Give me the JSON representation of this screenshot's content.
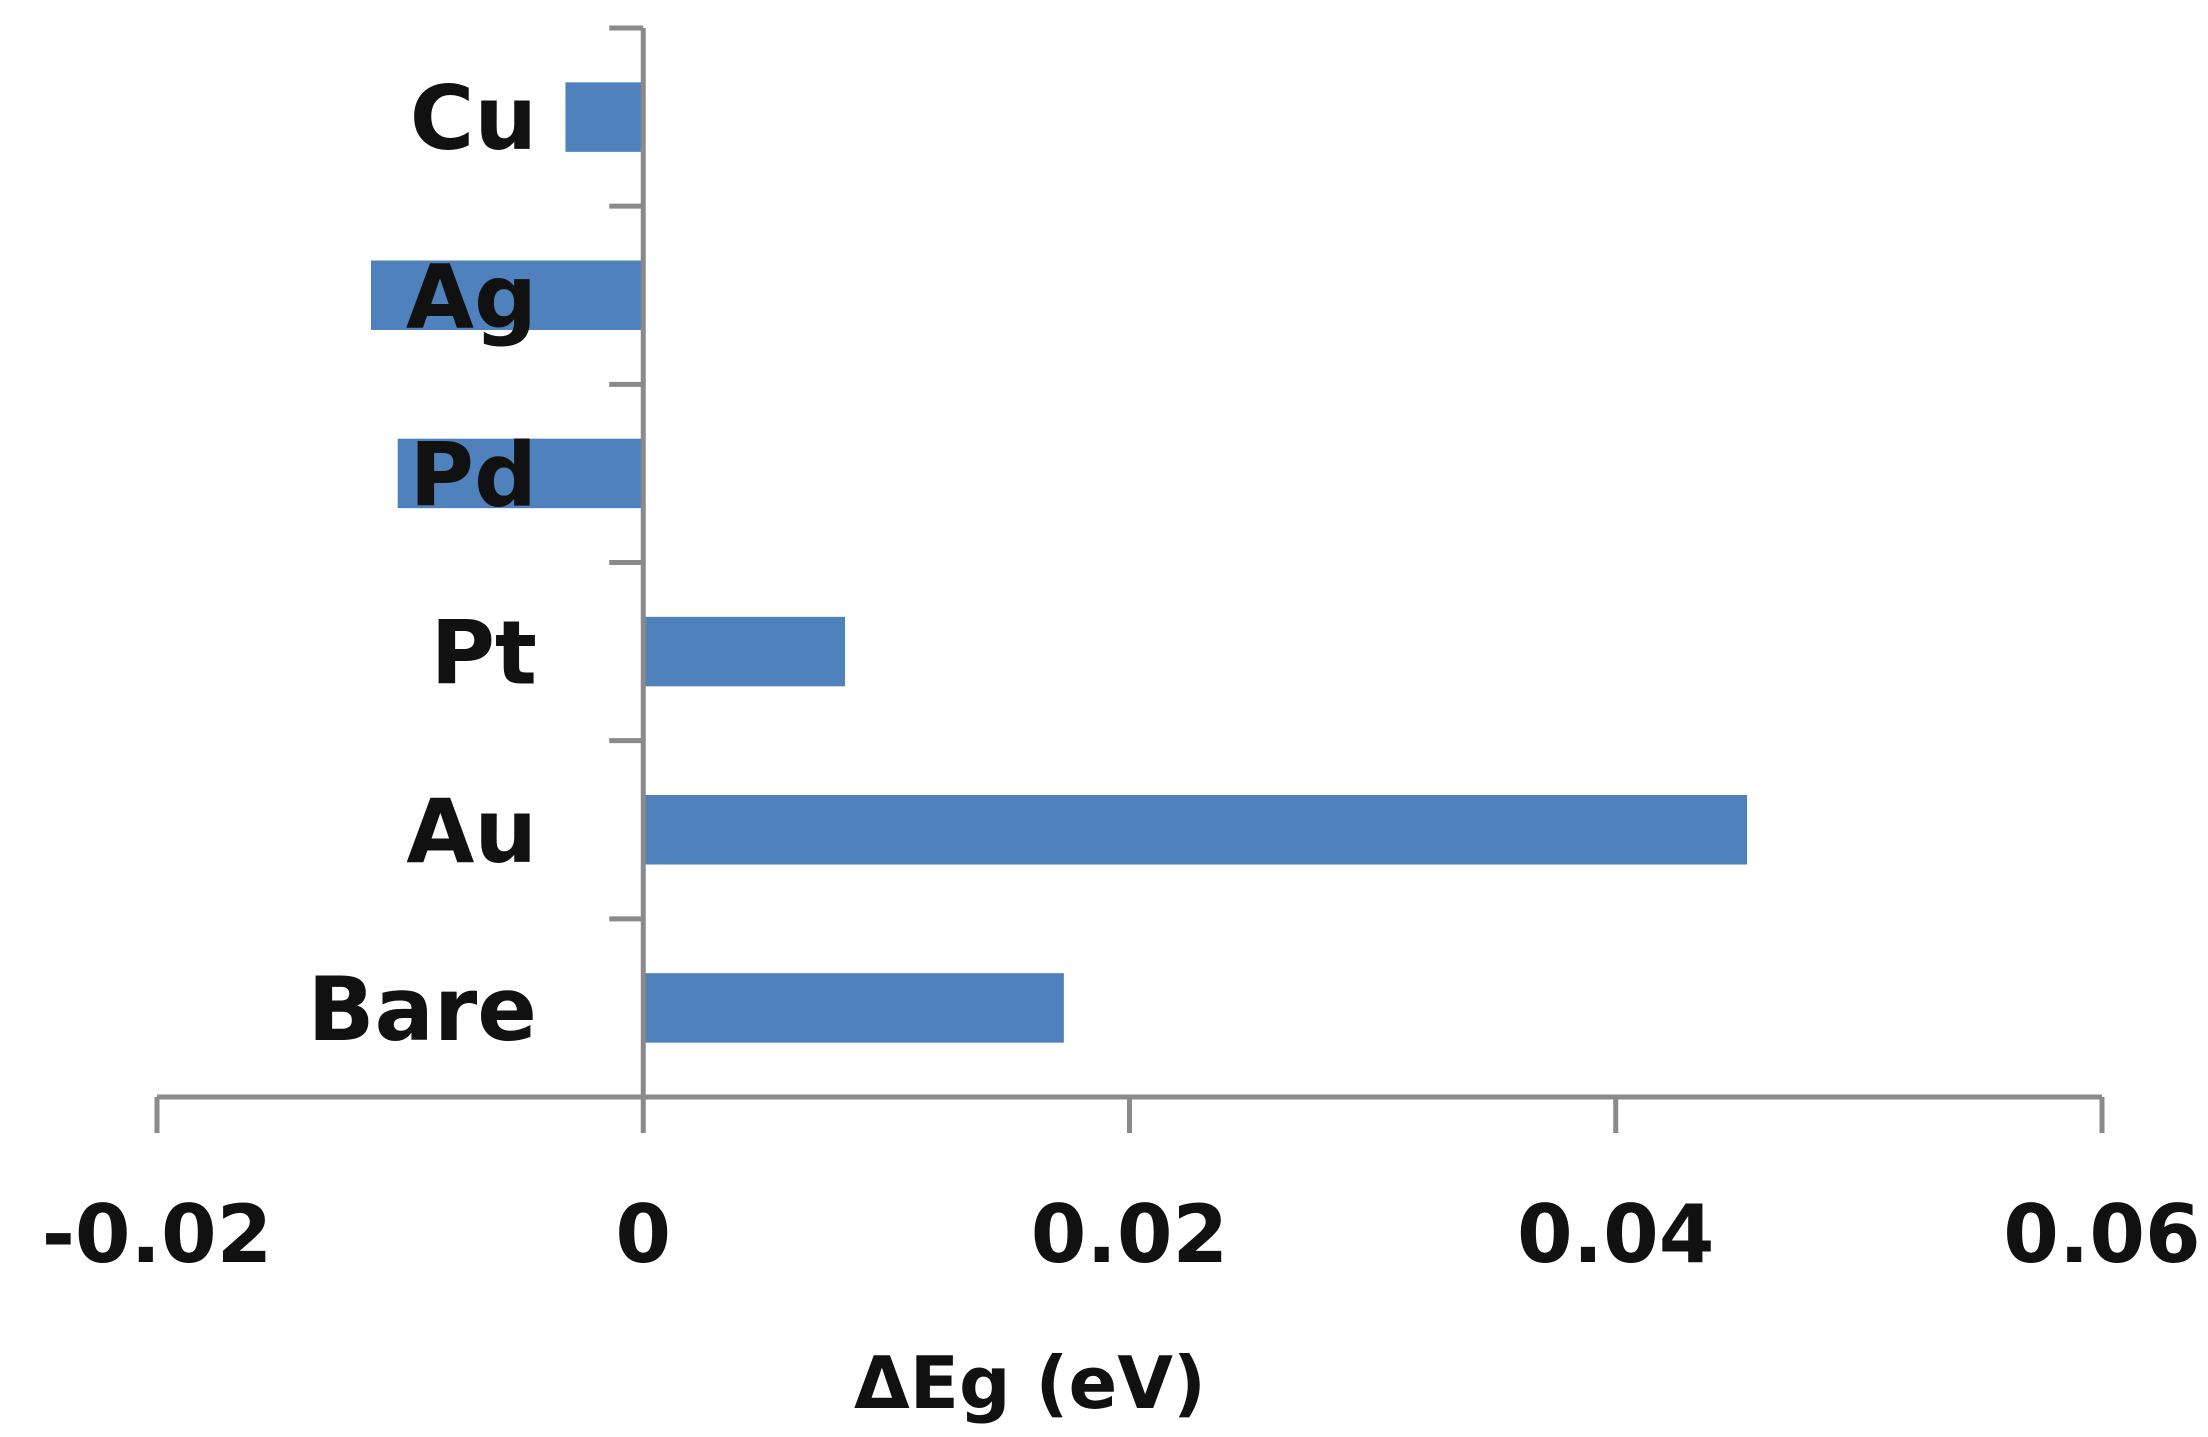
{
  "chart_data": {
    "type": "bar",
    "orientation": "horizontal",
    "categories": [
      "Bare",
      "Au",
      "Pt",
      "Pd",
      "Ag",
      "Cu"
    ],
    "values": [
      0.0173,
      0.0454,
      0.0083,
      -0.0101,
      -0.0112,
      -0.0032
    ],
    "xlabel": "ΔEg (eV)",
    "ylabel": "",
    "xlim": [
      -0.02,
      0.06
    ],
    "xticks": [
      "-0.02",
      "0",
      "0.02",
      "0.04",
      "0.06"
    ],
    "grid": false,
    "bar_color": "#4F81BD",
    "axis_color": "#8A8A8A"
  }
}
